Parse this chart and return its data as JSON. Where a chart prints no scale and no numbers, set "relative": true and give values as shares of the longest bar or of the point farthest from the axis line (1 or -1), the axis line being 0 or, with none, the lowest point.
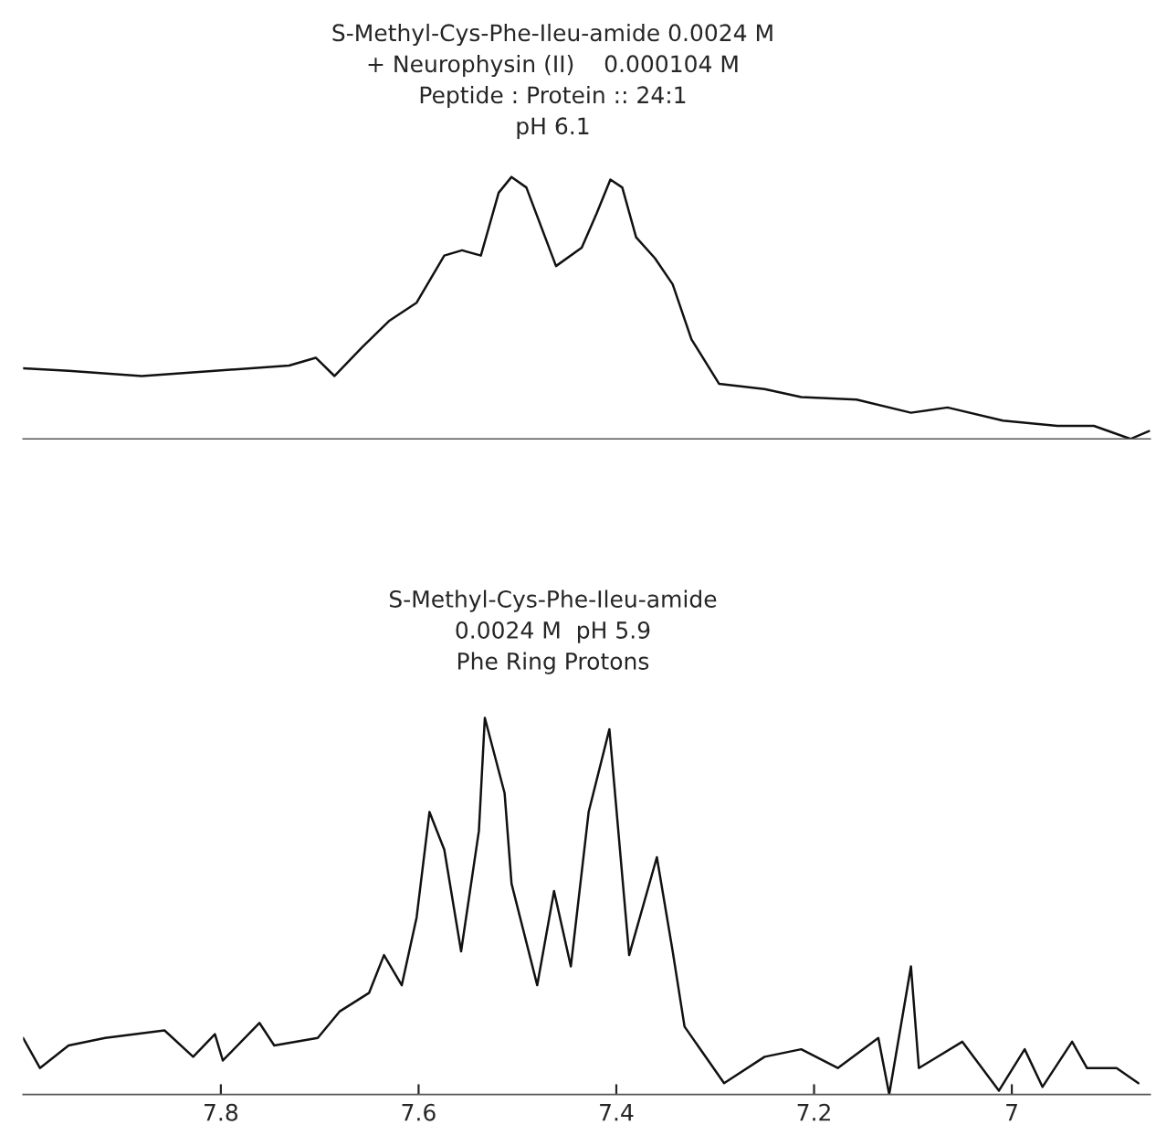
{
  "chart_data": [
    {
      "type": "line",
      "relative": true,
      "title": "S-Methyl-Cys-Phe-Ileu-amide 0.0024 M",
      "subtitle": "+ Neurophysin (II)    0.000104 M",
      "annotations": [
        "Peptide : Protein :: 24:1",
        "pH 6.1"
      ],
      "xlim": [
        8.0,
        6.86
      ],
      "tick_labels": false,
      "grid": false,
      "legend": false,
      "series": [
        {
          "color": "#111111",
          "x": [
            8.0,
            7.954,
            7.88,
            7.806,
            7.731,
            7.704,
            7.685,
            7.657,
            7.63,
            7.602,
            7.574,
            7.556,
            7.537,
            7.519,
            7.506,
            7.491,
            7.472,
            7.461,
            7.435,
            7.42,
            7.406,
            7.394,
            7.38,
            7.361,
            7.343,
            7.324,
            7.296,
            7.25,
            7.213,
            7.157,
            7.102,
            7.065,
            7.009,
            6.954,
            6.917,
            6.88,
            6.861
          ],
          "values": [
            0.27,
            0.26,
            0.24,
            0.26,
            0.28,
            0.31,
            0.24,
            0.35,
            0.45,
            0.52,
            0.7,
            0.72,
            0.7,
            0.94,
            1.0,
            0.96,
            0.77,
            0.66,
            0.73,
            0.86,
            0.99,
            0.96,
            0.77,
            0.69,
            0.59,
            0.38,
            0.21,
            0.19,
            0.16,
            0.15,
            0.1,
            0.12,
            0.07,
            0.05,
            0.05,
            0.0,
            0.03
          ]
        }
      ]
    },
    {
      "type": "line",
      "relative": true,
      "title": "S-Methyl-Cys-Phe-Ileu-amide",
      "subtitle": "0.0024 M  pH 5.9",
      "annotations": [
        "Phe Ring Protons"
      ],
      "xlim": [
        8.0,
        6.86
      ],
      "xticks": [
        7.8,
        7.6,
        7.4,
        7.2,
        7
      ],
      "tick_labels": "x",
      "grid": false,
      "legend": false,
      "series": [
        {
          "color": "#111111",
          "x": [
            8.0,
            7.983,
            7.954,
            7.917,
            7.857,
            7.828,
            7.806,
            7.798,
            7.761,
            7.746,
            7.702,
            7.68,
            7.65,
            7.635,
            7.617,
            7.602,
            7.589,
            7.574,
            7.557,
            7.539,
            7.533,
            7.513,
            7.506,
            7.48,
            7.463,
            7.446,
            7.428,
            7.407,
            7.387,
            7.359,
            7.343,
            7.331,
            7.291,
            7.25,
            7.213,
            7.176,
            7.135,
            7.124,
            7.102,
            7.094,
            7.05,
            7.013,
            6.987,
            6.969,
            6.939,
            6.924,
            6.894,
            6.872
          ],
          "values": [
            0.15,
            0.07,
            0.13,
            0.15,
            0.17,
            0.1,
            0.16,
            0.09,
            0.19,
            0.13,
            0.15,
            0.22,
            0.27,
            0.37,
            0.29,
            0.47,
            0.75,
            0.65,
            0.38,
            0.7,
            1.0,
            0.8,
            0.56,
            0.29,
            0.54,
            0.34,
            0.75,
            0.97,
            0.37,
            0.63,
            0.38,
            0.18,
            0.03,
            0.1,
            0.12,
            0.07,
            0.15,
            0.0,
            0.34,
            0.07,
            0.14,
            0.01,
            0.12,
            0.02,
            0.14,
            0.07,
            0.07,
            0.03
          ]
        }
      ]
    }
  ]
}
